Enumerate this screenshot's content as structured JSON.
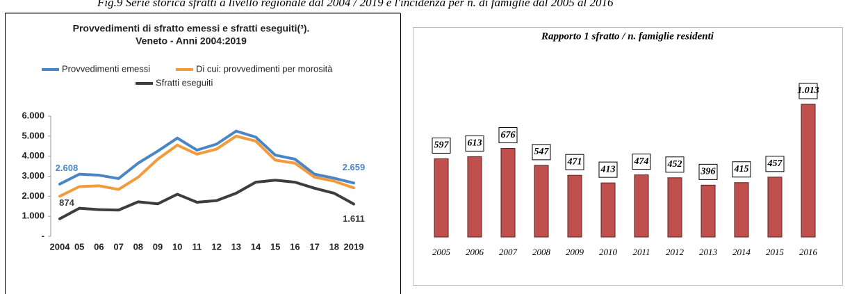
{
  "caption": "Fig.9 Serie storica sfratti a livello regionale dal 2004 / 2019 e l'incidenza per n. di famiglie dal 2005 al 2016",
  "chart_data": [
    {
      "type": "line",
      "title": [
        "Provvedimenti di sfratto emessi e sfratti eseguiti(³).",
        "Veneto - Anni 2004:2019"
      ],
      "categories": [
        "2004",
        "05",
        "06",
        "07",
        "08",
        "09",
        "10",
        "11",
        "12",
        "13",
        "14",
        "15",
        "16",
        "17",
        "18",
        "2019"
      ],
      "ylim": [
        0,
        6000
      ],
      "yticks": [
        {
          "value": 0,
          "label": "-"
        },
        {
          "value": 1000,
          "label": "1.000"
        },
        {
          "value": 2000,
          "label": "2.000"
        },
        {
          "value": 3000,
          "label": "3.000"
        },
        {
          "value": 4000,
          "label": "4.000"
        },
        {
          "value": 5000,
          "label": "5.000"
        },
        {
          "value": 6000,
          "label": "6.000"
        }
      ],
      "grid": false,
      "series": [
        {
          "name": "Provvedimenti emessi",
          "color": "#4a86c5",
          "values": [
            2608,
            3100,
            3050,
            2880,
            3650,
            4250,
            4900,
            4300,
            4600,
            5250,
            4950,
            4050,
            3850,
            3100,
            2900,
            2659
          ],
          "value_labels": [
            "2.608",
            null,
            null,
            null,
            null,
            null,
            null,
            null,
            null,
            null,
            null,
            null,
            null,
            null,
            null,
            "2.659"
          ]
        },
        {
          "name": "Di cui: provvedimenti per morosità",
          "color": "#f39a3c",
          "values": [
            2000,
            2480,
            2520,
            2340,
            2950,
            3850,
            4550,
            4100,
            4350,
            5000,
            4750,
            3800,
            3650,
            2950,
            2750,
            2420
          ]
        },
        {
          "name": "Sfratti eseguiti",
          "color": "#3d3d3d",
          "values": [
            874,
            1400,
            1330,
            1310,
            1720,
            1620,
            2100,
            1700,
            1780,
            2150,
            2700,
            2800,
            2700,
            2400,
            2150,
            1611
          ],
          "value_labels": [
            "874",
            null,
            null,
            null,
            null,
            null,
            null,
            null,
            null,
            null,
            null,
            null,
            null,
            null,
            null,
            "1.611"
          ]
        }
      ]
    },
    {
      "type": "bar",
      "title": "Rapporto 1 sfratto / n. famiglie residenti",
      "categories": [
        "2005",
        "2006",
        "2007",
        "2008",
        "2009",
        "2010",
        "2011",
        "2012",
        "2013",
        "2014",
        "2015",
        "2016"
      ],
      "values": [
        597,
        613,
        676,
        547,
        471,
        413,
        474,
        452,
        396,
        415,
        457,
        1013
      ],
      "value_labels": [
        "597",
        "613",
        "676",
        "547",
        "471",
        "413",
        "474",
        "452",
        "396",
        "415",
        "457",
        "1.013"
      ],
      "color": "#c0504d"
    }
  ]
}
